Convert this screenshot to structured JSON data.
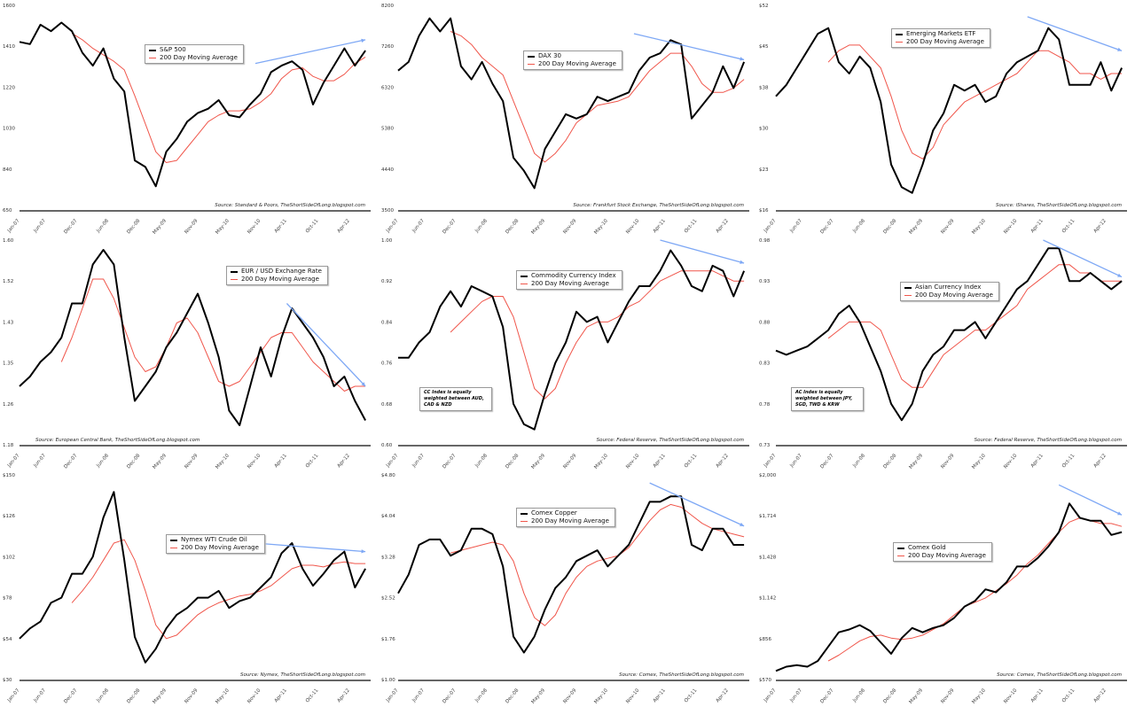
{
  "colors": {
    "price": "#000000",
    "ma": "#f0564b",
    "trend_arrow": "#7ea8f5"
  },
  "chart_data": [
    {
      "type": "line",
      "title": "",
      "legend": [
        "S&P 500",
        "200 Day Moving Average"
      ],
      "source": "Source: Standard & Poors, TheShortSideOfLong.blogspot.com",
      "yticks": [
        "650",
        "840",
        "1030",
        "1220",
        "1410",
        "1600"
      ],
      "ylim": [
        650,
        1600
      ],
      "xticks": [
        "Jan-07",
        "Jun-07",
        "Dec-07",
        "Jun-08",
        "Dec-08",
        "May-09",
        "Nov-09",
        "May-10",
        "Nov-10",
        "Apr-11",
        "Oct-11",
        "Apr-12"
      ],
      "price": [
        1430,
        1420,
        1510,
        1480,
        1520,
        1480,
        1380,
        1320,
        1400,
        1260,
        1200,
        880,
        850,
        760,
        920,
        980,
        1060,
        1100,
        1120,
        1160,
        1090,
        1080,
        1140,
        1190,
        1290,
        1320,
        1340,
        1300,
        1140,
        1240,
        1320,
        1400,
        1320,
        1390
      ],
      "ma": [
        null,
        null,
        null,
        null,
        null,
        1470,
        1440,
        1400,
        1370,
        1340,
        1300,
        1180,
        1050,
        920,
        870,
        880,
        940,
        1000,
        1060,
        1090,
        1110,
        1110,
        1120,
        1150,
        1190,
        1260,
        1300,
        1310,
        1270,
        1250,
        1250,
        1280,
        1330,
        1360
      ],
      "trend": {
        "from": [
          "Oct-10",
          1330
        ],
        "to": [
          "Jul-12",
          1440
        ]
      }
    },
    {
      "type": "line",
      "title": "",
      "legend": [
        "DAX 30",
        "200 Day Moving Average"
      ],
      "source": "Source: Frankfurt Stock Exchange, TheShortSideOfLong.blogspot.com",
      "yticks": [
        "3500",
        "4440",
        "5380",
        "6320",
        "7260",
        "8200"
      ],
      "ylim": [
        3500,
        8200
      ],
      "xticks": [
        "Jan-07",
        "Jun-07",
        "Dec-07",
        "Jun-08",
        "Dec-08",
        "May-09",
        "Nov-09",
        "May-10",
        "Nov-10",
        "Apr-11",
        "Oct-11",
        "Apr-12"
      ],
      "price": [
        6700,
        6900,
        7500,
        7900,
        7600,
        7900,
        6800,
        6500,
        6900,
        6400,
        6000,
        4700,
        4400,
        4000,
        4900,
        5300,
        5700,
        5600,
        5700,
        6100,
        6000,
        6100,
        6200,
        6700,
        7000,
        7100,
        7400,
        7300,
        5600,
        5900,
        6200,
        6800,
        6300,
        6900
      ],
      "ma": [
        null,
        null,
        null,
        null,
        null,
        7600,
        7500,
        7300,
        7000,
        6800,
        6600,
        6000,
        5400,
        4800,
        4600,
        4800,
        5100,
        5500,
        5700,
        5900,
        5950,
        6000,
        6100,
        6400,
        6700,
        6900,
        7100,
        7100,
        6800,
        6400,
        6200,
        6200,
        6300,
        6500
      ],
      "trend": {
        "from": [
          "Oct-10",
          7550
        ],
        "to": [
          "Jul-12",
          6950
        ]
      }
    },
    {
      "type": "line",
      "title": "",
      "legend": [
        "Emerging Markets ETF",
        "200 Day Moving Average"
      ],
      "source": "Source: iShares, TheShortSideOfLong.blogspot.com",
      "yticks": [
        "$16",
        "$23",
        "$30",
        "$38",
        "$45",
        "$52"
      ],
      "ylim": [
        16,
        52
      ],
      "xticks": [
        "Jan-07",
        "Jun-07",
        "Dec-07",
        "Jun-08",
        "Dec-08",
        "May-09",
        "Nov-09",
        "May-10",
        "Nov-10",
        "Apr-11",
        "Oct-11",
        "Apr-12"
      ],
      "price": [
        36,
        38,
        41,
        44,
        47,
        48,
        42,
        40,
        43,
        41,
        35,
        24,
        20,
        19,
        24,
        30,
        33,
        38,
        37,
        38,
        35,
        36,
        40,
        42,
        43,
        44,
        48,
        46,
        38,
        38,
        38,
        42,
        37,
        41
      ],
      "ma": [
        null,
        null,
        null,
        null,
        null,
        42,
        44,
        45,
        45,
        43,
        41,
        36,
        30,
        26,
        25,
        27,
        31,
        33,
        35,
        36,
        37,
        38,
        39,
        40,
        42,
        44,
        44,
        43,
        42,
        40,
        40,
        39,
        40,
        40
      ],
      "trend": {
        "from": [
          "Jan-11",
          50
        ],
        "to": [
          "Jul-12",
          44
        ]
      }
    },
    {
      "type": "line",
      "title": "",
      "legend": [
        "EUR / USD Exchange Rate",
        "200 Day Moving Average"
      ],
      "source": "Source: European Central Bank, TheShortSideOfLong.blogspot.com",
      "yticks": [
        "1.18",
        "1.26",
        "1.35",
        "1.43",
        "1.52",
        "1.60"
      ],
      "ylim": [
        1.18,
        1.6
      ],
      "xticks": [
        "Jan-07",
        "Jun-07",
        "Dec-07",
        "Jun-08",
        "Dec-08",
        "May-09",
        "Nov-09",
        "May-10",
        "Nov-10",
        "Apr-11",
        "Oct-11",
        "Apr-12"
      ],
      "price": [
        1.3,
        1.32,
        1.35,
        1.37,
        1.4,
        1.47,
        1.47,
        1.55,
        1.58,
        1.55,
        1.4,
        1.27,
        1.3,
        1.33,
        1.38,
        1.41,
        1.45,
        1.49,
        1.43,
        1.36,
        1.25,
        1.22,
        1.3,
        1.38,
        1.32,
        1.4,
        1.46,
        1.43,
        1.4,
        1.36,
        1.3,
        1.32,
        1.27,
        1.23
      ],
      "ma": [
        null,
        null,
        null,
        null,
        1.35,
        1.4,
        1.46,
        1.52,
        1.52,
        1.48,
        1.42,
        1.36,
        1.33,
        1.34,
        1.38,
        1.43,
        1.44,
        1.41,
        1.36,
        1.31,
        1.3,
        1.31,
        1.34,
        1.37,
        1.4,
        1.41,
        1.41,
        1.38,
        1.35,
        1.33,
        1.31,
        1.29,
        1.3,
        1.3
      ],
      "trend": {
        "from": [
          "Apr-11",
          1.47
        ],
        "to": [
          "Jul-12",
          1.3
        ]
      }
    },
    {
      "type": "line",
      "title": "",
      "legend": [
        "Commodity Currency Index",
        "200 Day Moving Average"
      ],
      "source": "Source: Federal Reserve, TheShortSideOfLong.blogspot.com",
      "note": "CC Index is equally weighted between AUD, CAD & NZD",
      "yticks": [
        "0.60",
        "0.68",
        "0.76",
        "0.84",
        "0.92",
        "1.00"
      ],
      "ylim": [
        0.6,
        1.0
      ],
      "xticks": [
        "Jan-07",
        "Jun-07",
        "Dec-07",
        "Jun-08",
        "Dec-08",
        "May-09",
        "Nov-09",
        "May-10",
        "Nov-10",
        "Apr-11",
        "Oct-11",
        "Apr-12"
      ],
      "price": [
        0.77,
        0.77,
        0.8,
        0.82,
        0.87,
        0.9,
        0.87,
        0.91,
        0.9,
        0.89,
        0.83,
        0.68,
        0.64,
        0.63,
        0.7,
        0.76,
        0.8,
        0.86,
        0.84,
        0.85,
        0.8,
        0.84,
        0.88,
        0.91,
        0.91,
        0.94,
        0.98,
        0.95,
        0.91,
        0.9,
        0.95,
        0.94,
        0.89,
        0.94
      ],
      "ma": [
        null,
        null,
        null,
        null,
        null,
        0.82,
        0.84,
        0.86,
        0.88,
        0.89,
        0.89,
        0.85,
        0.78,
        0.71,
        0.69,
        0.71,
        0.76,
        0.8,
        0.83,
        0.84,
        0.84,
        0.85,
        0.87,
        0.88,
        0.9,
        0.92,
        0.93,
        0.94,
        0.94,
        0.94,
        0.94,
        0.93,
        0.92,
        0.92
      ],
      "trend": {
        "from": [
          "Mar-11",
          1.0
        ],
        "to": [
          "Jul-12",
          0.955
        ]
      }
    },
    {
      "type": "line",
      "title": "",
      "legend": [
        "Asian Currency Index",
        "200 Day Moving Average"
      ],
      "source": "Source: Federal Reserve, TheShortSideOfLong.blogspot.com",
      "note": "AC Index is equally weighted between JPY, SGD, TWD & KRW",
      "yticks": [
        "0.73",
        "0.78",
        "0.83",
        "0.88",
        "0.93",
        "0.98"
      ],
      "ylim": [
        0.73,
        0.98
      ],
      "xticks": [
        "Jan-07",
        "Jun-07",
        "Dec-07",
        "Jun-08",
        "Dec-08",
        "May-09",
        "Nov-09",
        "May-10",
        "Nov-10",
        "Apr-11",
        "Oct-11",
        "Apr-12"
      ],
      "price": [
        0.845,
        0.84,
        0.845,
        0.85,
        0.86,
        0.87,
        0.89,
        0.9,
        0.88,
        0.85,
        0.82,
        0.78,
        0.76,
        0.78,
        0.82,
        0.84,
        0.85,
        0.87,
        0.87,
        0.88,
        0.86,
        0.88,
        0.9,
        0.92,
        0.93,
        0.95,
        0.97,
        0.97,
        0.93,
        0.93,
        0.94,
        0.93,
        0.92,
        0.93
      ],
      "ma": [
        null,
        null,
        null,
        null,
        null,
        0.86,
        0.87,
        0.88,
        0.88,
        0.88,
        0.87,
        0.84,
        0.81,
        0.8,
        0.8,
        0.82,
        0.84,
        0.85,
        0.86,
        0.87,
        0.87,
        0.88,
        0.89,
        0.9,
        0.92,
        0.93,
        0.94,
        0.95,
        0.95,
        0.94,
        0.94,
        0.93,
        0.93,
        0.93
      ],
      "trend": {
        "from": [
          "Apr-11",
          0.98
        ],
        "to": [
          "Jul-12",
          0.935
        ]
      }
    },
    {
      "type": "line",
      "title": "",
      "legend": [
        "Nymex WTI Crude Oil",
        "200 Day Moving Average"
      ],
      "source": "Source: Nymex, TheShortSideOfLong.blogspot.com",
      "yticks": [
        "$30",
        "$54",
        "$78",
        "$102",
        "$126",
        "$150"
      ],
      "ylim": [
        30,
        150
      ],
      "xticks": [
        "Jan-07",
        "Jun-07",
        "Dec-07",
        "Jun-08",
        "Dec-08",
        "May-09",
        "Nov-09",
        "May-10",
        "Nov-10",
        "Apr-11",
        "Oct-11",
        "Apr-12"
      ],
      "price": [
        54,
        60,
        64,
        75,
        78,
        92,
        92,
        102,
        125,
        140,
        100,
        55,
        40,
        48,
        60,
        68,
        72,
        78,
        78,
        82,
        72,
        76,
        78,
        84,
        90,
        104,
        110,
        95,
        85,
        92,
        100,
        105,
        84,
        95
      ],
      "ma": [
        null,
        null,
        null,
        null,
        null,
        75,
        82,
        90,
        100,
        110,
        112,
        100,
        82,
        62,
        54,
        56,
        62,
        68,
        72,
        75,
        77,
        79,
        80,
        82,
        85,
        90,
        95,
        97,
        97,
        96,
        98,
        99,
        98,
        98
      ],
      "trend": {
        "from": [
          "Oct-10",
          110
        ],
        "to": [
          "Jul-12",
          105
        ]
      }
    },
    {
      "type": "line",
      "title": "",
      "legend": [
        "Comex Copper",
        "200 Day Moving Average"
      ],
      "source": "Source: Comex, TheShortSideOfLong.blogspot.com",
      "yticks": [
        "$1.00",
        "$1.76",
        "$2.52",
        "$3.28",
        "$4.04",
        "$4.80"
      ],
      "ylim": [
        1.0,
        4.8
      ],
      "xticks": [
        "Jan-07",
        "Jun-07",
        "Dec-07",
        "Jun-08",
        "Dec-08",
        "May-09",
        "Nov-09",
        "May-10",
        "Nov-10",
        "Apr-11",
        "Oct-11",
        "Apr-12"
      ],
      "price": [
        2.6,
        2.95,
        3.5,
        3.6,
        3.6,
        3.3,
        3.4,
        3.8,
        3.8,
        3.7,
        3.1,
        1.8,
        1.5,
        1.8,
        2.3,
        2.7,
        2.9,
        3.2,
        3.3,
        3.4,
        3.1,
        3.3,
        3.5,
        3.9,
        4.3,
        4.3,
        4.4,
        4.4,
        3.5,
        3.4,
        3.8,
        3.8,
        3.5,
        3.5
      ],
      "ma": [
        null,
        null,
        null,
        null,
        null,
        3.35,
        3.4,
        3.45,
        3.5,
        3.55,
        3.5,
        3.2,
        2.6,
        2.15,
        2.0,
        2.2,
        2.6,
        2.9,
        3.1,
        3.2,
        3.25,
        3.3,
        3.45,
        3.7,
        3.95,
        4.15,
        4.25,
        4.2,
        4.05,
        3.9,
        3.8,
        3.75,
        3.7,
        3.65
      ],
      "trend": {
        "from": [
          "Jan-11",
          4.65
        ],
        "to": [
          "Jul-12",
          3.85
        ]
      }
    },
    {
      "type": "line",
      "title": "",
      "legend": [
        "Comex Gold",
        "200 Day Moving Average"
      ],
      "source": "Source: Comex, TheShortSideOfLong.blogspot.com",
      "yticks": [
        "$570",
        "$856",
        "$1,142",
        "$1,428",
        "$1,714",
        "$2,000"
      ],
      "ylim": [
        570,
        2000
      ],
      "xticks": [
        "Jan-07",
        "Jun-07",
        "Dec-07",
        "Jun-08",
        "Dec-08",
        "May-09",
        "Nov-09",
        "May-10",
        "Nov-10",
        "Apr-11",
        "Oct-11",
        "Apr-12"
      ],
      "price": [
        630,
        660,
        670,
        660,
        700,
        800,
        900,
        920,
        950,
        910,
        830,
        750,
        860,
        930,
        900,
        930,
        950,
        1000,
        1080,
        1120,
        1200,
        1180,
        1250,
        1360,
        1360,
        1420,
        1500,
        1600,
        1800,
        1700,
        1680,
        1680,
        1580,
        1600
      ],
      "ma": [
        null,
        null,
        null,
        null,
        null,
        700,
        740,
        790,
        840,
        870,
        880,
        860,
        850,
        860,
        880,
        920,
        960,
        1020,
        1080,
        1110,
        1140,
        1190,
        1240,
        1300,
        1380,
        1440,
        1520,
        1600,
        1670,
        1700,
        1680,
        1660,
        1660,
        1640
      ],
      "trend": {
        "from": [
          "Jul-11",
          1930
        ],
        "to": [
          "Jul-12",
          1720
        ]
      }
    }
  ]
}
